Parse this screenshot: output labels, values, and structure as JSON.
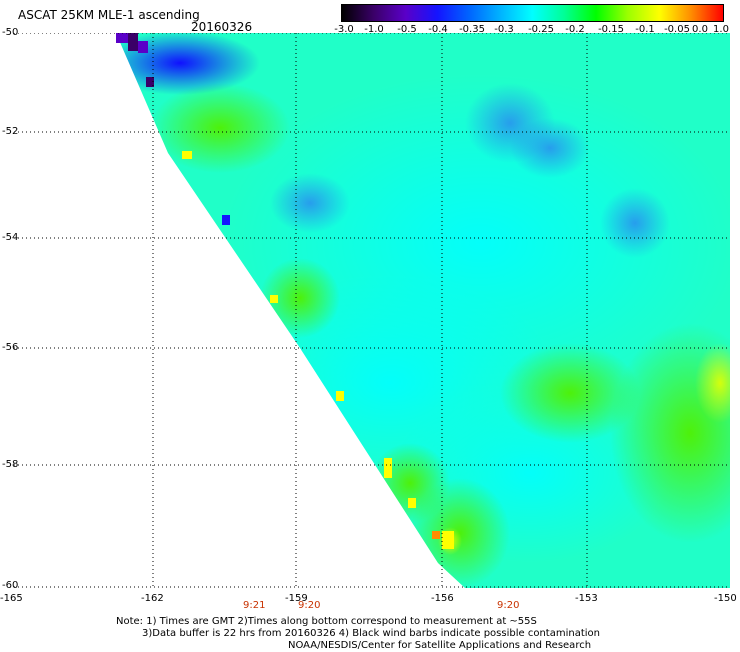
{
  "title": "ASCAT 25KM MLE-1 ascending",
  "date": "20160326",
  "colorbar": {
    "ticks": [
      "-3.0",
      "-1.0",
      "-0.5",
      "-0.4",
      "-0.35",
      "-0.3",
      "-0.25",
      "-0.2",
      "-0.15",
      "-0.1",
      "-0.05",
      "0.0",
      "1.0"
    ],
    "colors": [
      "#000000",
      "#3a0068",
      "#5a00c8",
      "#1414ff",
      "#0064ff",
      "#00b4ff",
      "#00ffff",
      "#00ff96",
      "#00ff00",
      "#9bff00",
      "#ffff00",
      "#ff8c00",
      "#ff0000"
    ]
  },
  "map": {
    "lat_labels": [
      "-50",
      "-52",
      "-54",
      "-56",
      "-58",
      "-60"
    ],
    "lon_labels": [
      "-165",
      "-162",
      "-159",
      "-156",
      "-153",
      "-150"
    ],
    "time_labels": [
      "9:21",
      "9:20",
      "9:20"
    ],
    "background_color": "#00ff7f",
    "field_color": "#20ffc8"
  },
  "notes": [
    "Note: 1) Times are GMT 2)Times along bottom correspond to measurement at ~55S",
    "3)Data buffer is 22 hrs from 20160326 4) Black wind barbs indicate possible contamination",
    "NOAA/NESDIS/Center for Satellite Applications and Research"
  ]
}
